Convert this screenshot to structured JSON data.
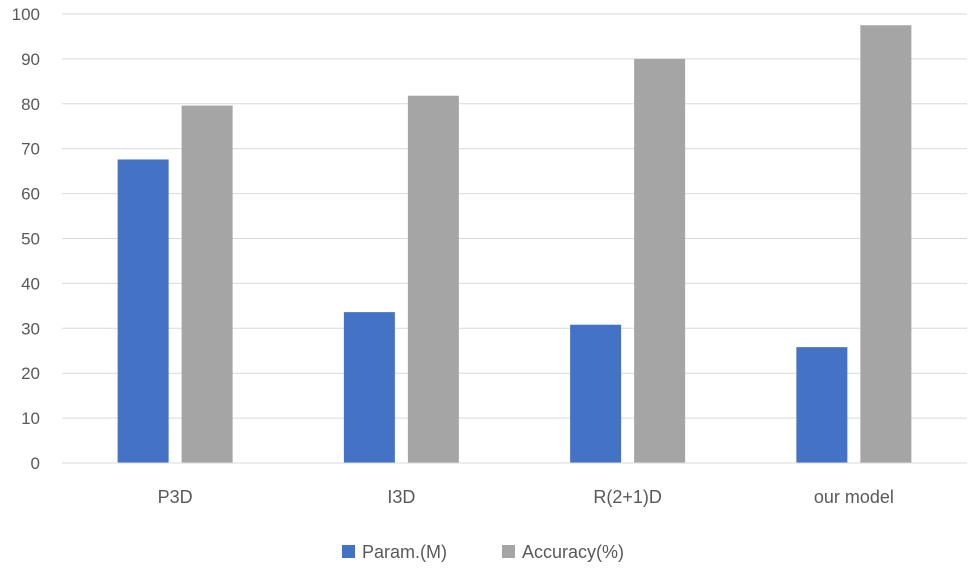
{
  "chart_data": {
    "type": "bar",
    "title": "",
    "xlabel": "",
    "ylabel": "",
    "categories": [
      "P3D",
      "I3D",
      "R(2+1)D",
      "our model"
    ],
    "series": [
      {
        "name": "Param.(M)",
        "color": "#4472c4",
        "values": [
          67.6,
          33.6,
          30.8,
          25.8
        ]
      },
      {
        "name": "Accuracy(%)",
        "color": "#a5a5a5",
        "values": [
          79.6,
          81.8,
          90.0,
          97.5
        ]
      }
    ],
    "ylim": [
      0,
      100
    ],
    "yticks": [
      0,
      10,
      20,
      30,
      40,
      50,
      60,
      70,
      80,
      90,
      100
    ],
    "grid": true,
    "legend": "bottom"
  }
}
